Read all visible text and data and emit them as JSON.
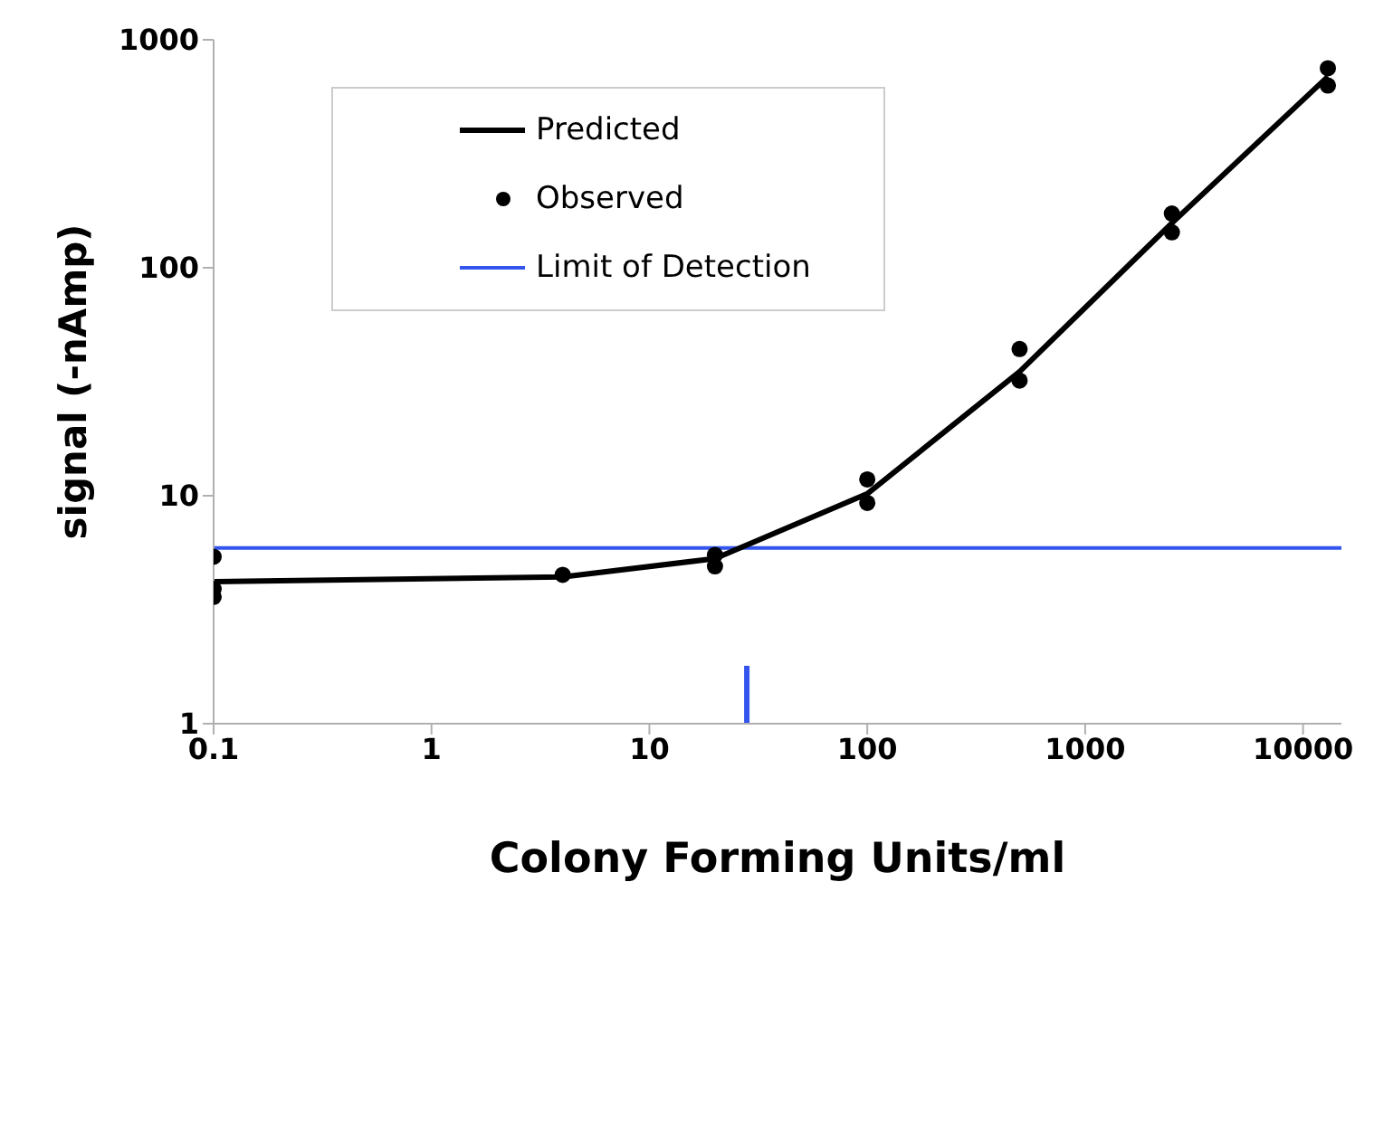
{
  "chart_data": {
    "type": "line",
    "xlabel": "Colony Forming Units/ml",
    "ylabel": "signal (-nAmp)",
    "log": "xy",
    "xlim": [
      0.1,
      15000
    ],
    "xticks": [
      0.1,
      1,
      10,
      100,
      1000,
      10000
    ],
    "ylim": [
      1,
      1000
    ],
    "yticks": [
      1,
      10,
      100,
      1000
    ],
    "grid": false,
    "legend": "top left",
    "series": [
      {
        "name": "Predicted",
        "color": "#000000",
        "marker": "none",
        "x": [
          0.1,
          4,
          20,
          100,
          500,
          2500,
          13000
        ],
        "values": [
          4.2,
          4.4,
          5.3,
          10.2,
          35,
          157,
          690
        ]
      },
      {
        "name": "Observed",
        "type": "scatter",
        "color": "#000000",
        "marker": "circle",
        "x": [
          0.1,
          0.1,
          0.1,
          4,
          20,
          20,
          100,
          100,
          500,
          500,
          2500,
          2500,
          13000,
          13000
        ],
        "values": [
          5.4,
          3.9,
          3.6,
          4.5,
          5.5,
          4.9,
          11.8,
          9.3,
          44,
          32,
          173,
          143,
          750,
          630
        ]
      }
    ],
    "ref_lines": [
      {
        "axis": "y",
        "value": 5.9,
        "label": "Limit of Detection",
        "color": "#3355ee"
      },
      {
        "axis": "x",
        "value": 28,
        "color": "#3355ee"
      }
    ]
  }
}
